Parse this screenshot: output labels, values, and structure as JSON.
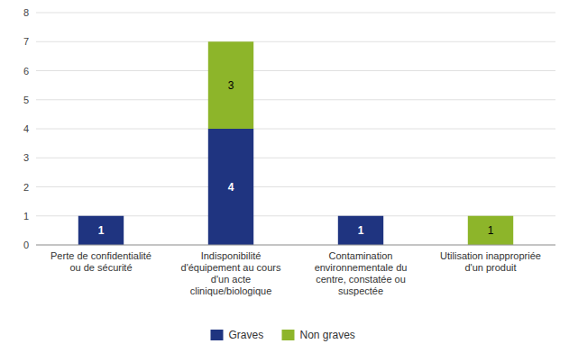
{
  "chart_data": {
    "type": "bar",
    "stacked": true,
    "categories": [
      "Perte de confidentialité\nou de sécurité",
      "Indisponibilité\nd'équipement au cours\nd'un acte\nclinique/biologique",
      "Contamination\nenvironnementale du\ncentre, constatée ou\nsuspectée",
      "Utilisation inappropriée\nd'un produit"
    ],
    "series": [
      {
        "name": "Graves",
        "color": "#1F3480",
        "values": [
          1,
          4,
          1,
          0
        ]
      },
      {
        "name": "Non graves",
        "color": "#8DB52A",
        "values": [
          0,
          3,
          0,
          1
        ]
      }
    ],
    "ylim": [
      0,
      8
    ],
    "yticks": [
      0,
      1,
      2,
      3,
      4,
      5,
      6,
      7,
      8
    ],
    "grid": true,
    "data_labels": true,
    "legend": "bottom"
  }
}
